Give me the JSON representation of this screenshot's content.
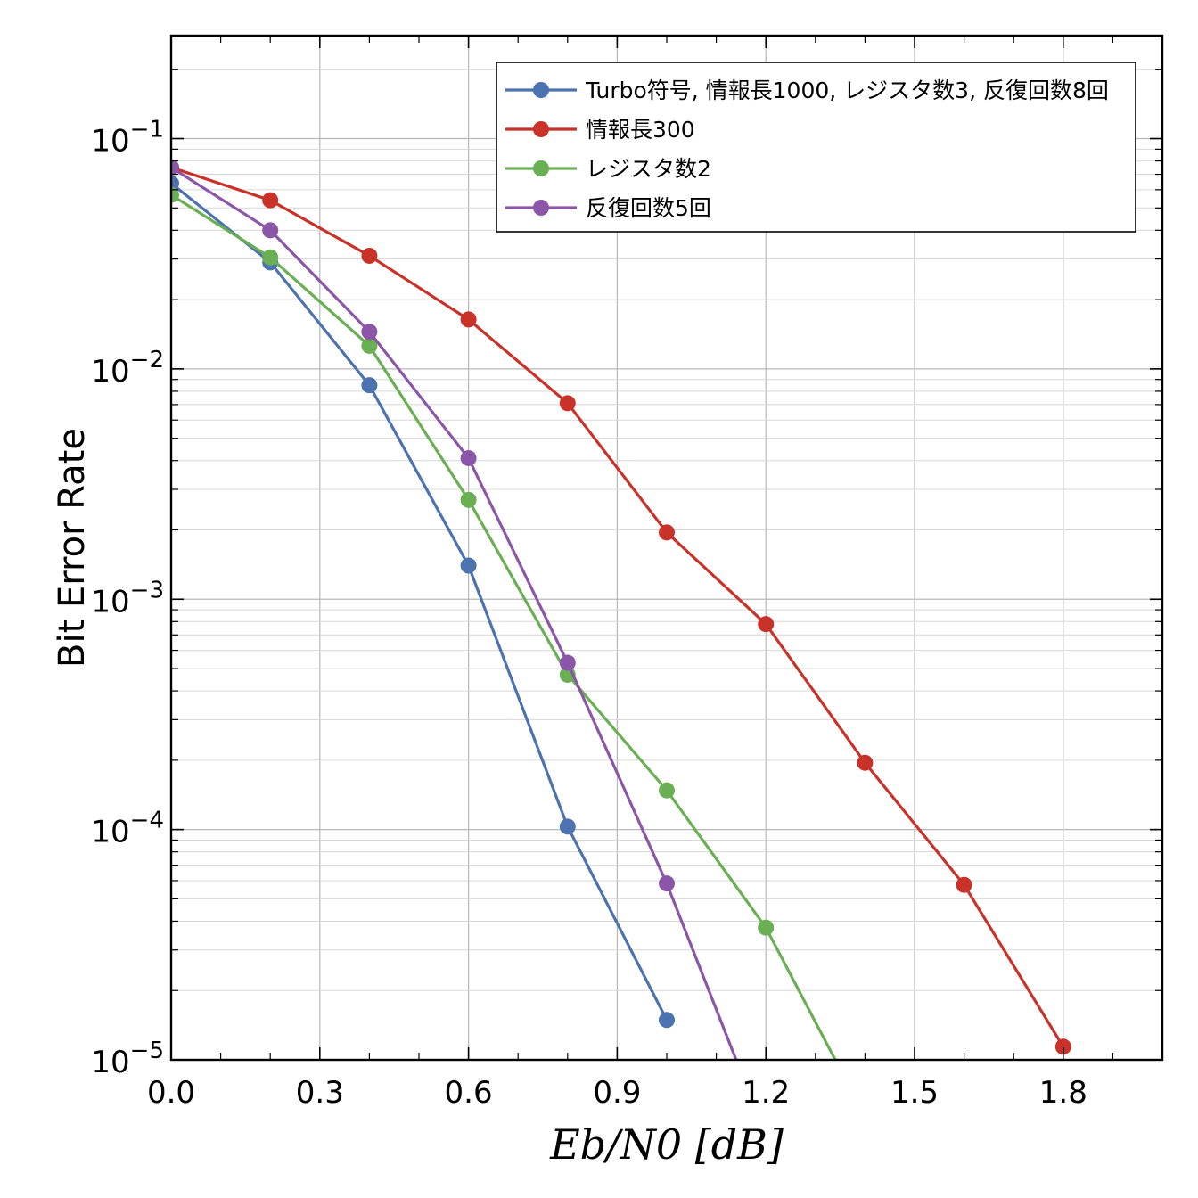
{
  "chart_data": {
    "type": "line",
    "xlabel": "Eb/N0 [dB]",
    "ylabel": "Bit Error Rate",
    "xlim": [
      0.0,
      2.0
    ],
    "ylim": [
      1e-05,
      0.28
    ],
    "yscale": "log",
    "grid": true,
    "legend_position": "top-right",
    "x_ticks": [
      "0.0",
      "0.3",
      "0.6",
      "0.9",
      "1.2",
      "1.5",
      "1.8"
    ],
    "y_ticks": [
      {
        "base": "10",
        "exp": "−1"
      },
      {
        "base": "10",
        "exp": "−2"
      },
      {
        "base": "10",
        "exp": "−3"
      },
      {
        "base": "10",
        "exp": "−4"
      },
      {
        "base": "10",
        "exp": "−5"
      }
    ],
    "series": [
      {
        "name": "Turbo符号, 情報長1000, レジスタ数3, 反復回数8回",
        "color": "#4C72B0",
        "x": [
          0.0,
          0.2,
          0.4,
          0.6,
          0.8,
          1.0
        ],
        "y": [
          0.064,
          0.029,
          0.0085,
          0.0014,
          0.000103,
          1.49e-05
        ]
      },
      {
        "name": "情報長300",
        "color": "#C83228",
        "x": [
          0.0,
          0.2,
          0.4,
          0.6,
          0.8,
          1.0,
          1.2,
          1.4,
          1.6,
          1.8
        ],
        "y": [
          0.075,
          0.054,
          0.031,
          0.0164,
          0.0071,
          0.00195,
          0.00078,
          0.000195,
          5.75e-05,
          1.14e-05
        ]
      },
      {
        "name": "レジスタ数2",
        "color": "#6AAF53",
        "x": [
          0.0,
          0.2,
          0.4,
          0.6,
          0.8,
          1.0,
          1.2,
          1.34
        ],
        "y": [
          0.057,
          0.0305,
          0.0126,
          0.0027,
          0.00047,
          0.000148,
          3.75e-05,
          1e-05
        ]
      },
      {
        "name": "反復回数5回",
        "color": "#8C56A8",
        "x": [
          0.0,
          0.2,
          0.4,
          0.6,
          0.8,
          1.0,
          1.14
        ],
        "y": [
          0.075,
          0.04,
          0.0145,
          0.0041,
          0.00053,
          5.83e-05,
          1e-05
        ]
      }
    ]
  }
}
